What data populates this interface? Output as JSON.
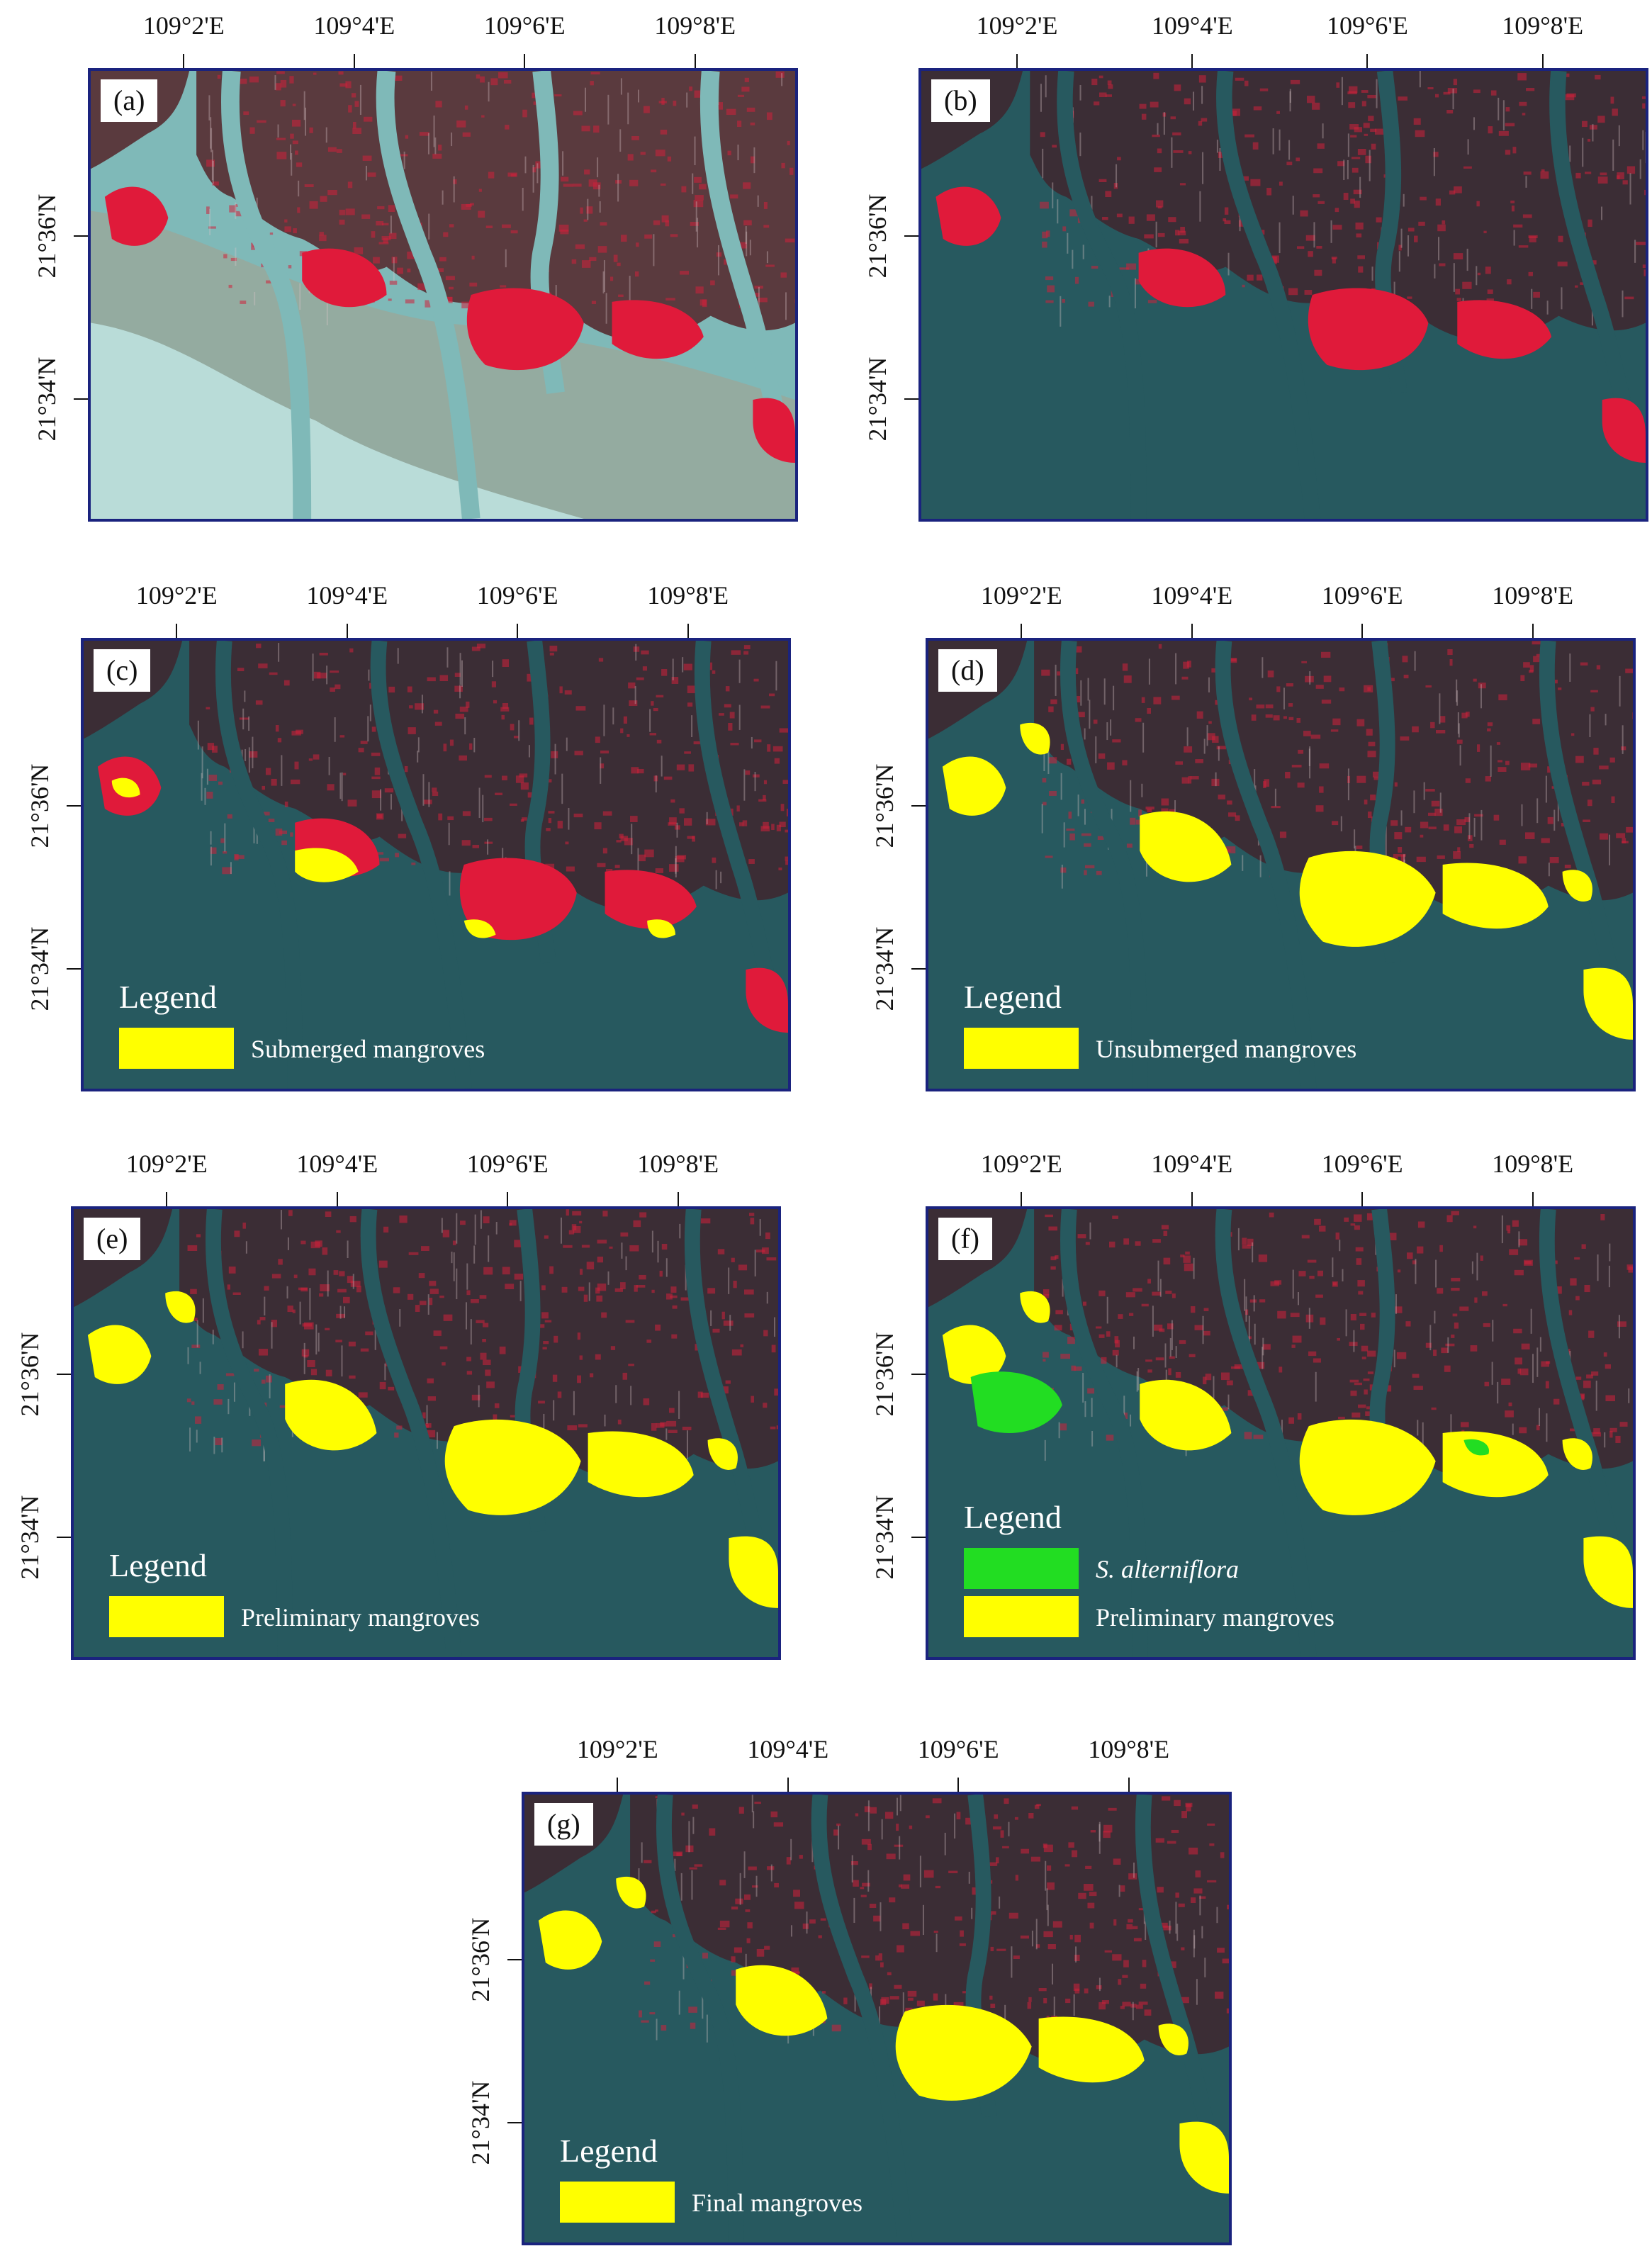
{
  "axes": {
    "lon_ticks": [
      "109°2'E",
      "109°4'E",
      "109°6'E",
      "109°8'E"
    ],
    "lat_ticks": [
      "21°36'N",
      "21°34'N"
    ]
  },
  "colors": {
    "frame": "#1a237e",
    "submerged": "#ffff00",
    "preliminary": "#ffff00",
    "final": "#ffff00",
    "spartina": "#22dd22",
    "vegetation_red": "#e01a3a",
    "water": "#24555d"
  },
  "panels": [
    {
      "id": "a",
      "label": "(a)",
      "legend": null
    },
    {
      "id": "b",
      "label": "(b)",
      "legend": null
    },
    {
      "id": "c",
      "label": "(c)",
      "legend": {
        "title": "Legend",
        "items": [
          {
            "color": "#ffff00",
            "label": "Submerged mangroves",
            "italic": false
          }
        ]
      }
    },
    {
      "id": "d",
      "label": "(d)",
      "legend": {
        "title": "Legend",
        "items": [
          {
            "color": "#ffff00",
            "label": "Unsubmerged mangroves",
            "italic": false
          }
        ]
      }
    },
    {
      "id": "e",
      "label": "(e)",
      "legend": {
        "title": "Legend",
        "items": [
          {
            "color": "#ffff00",
            "label": "Preliminary mangroves",
            "italic": false
          }
        ]
      }
    },
    {
      "id": "f",
      "label": "(f)",
      "legend": {
        "title": "Legend",
        "items": [
          {
            "color": "#22dd22",
            "label": "S. alterniflora",
            "italic": true
          },
          {
            "color": "#ffff00",
            "label": "Preliminary mangroves",
            "italic": false
          }
        ]
      }
    },
    {
      "id": "g",
      "label": "(g)",
      "legend": {
        "title": "Legend",
        "items": [
          {
            "color": "#ffff00",
            "label": "Final mangroves",
            "italic": false
          }
        ]
      }
    }
  ]
}
